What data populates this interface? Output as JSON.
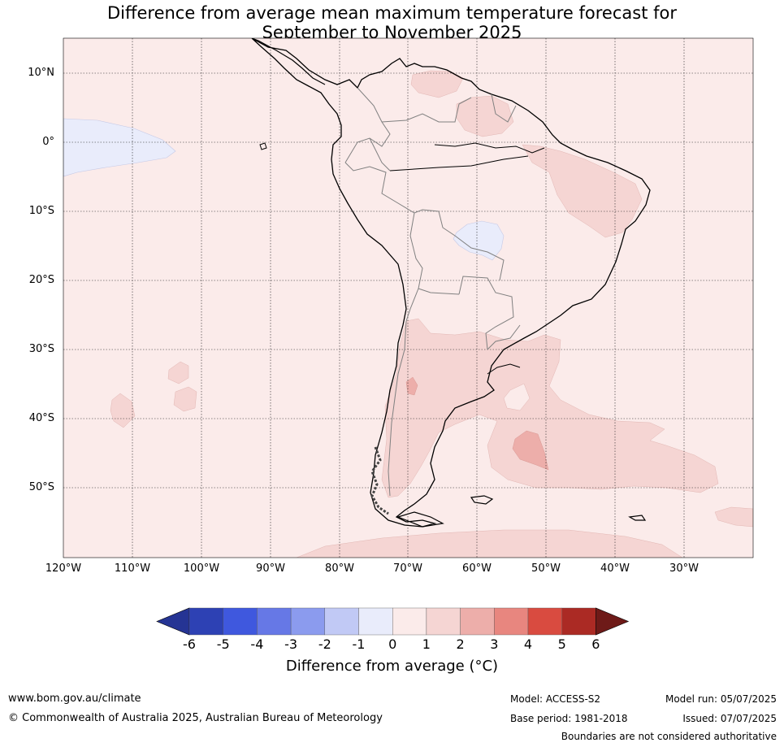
{
  "header": {
    "title_line1": "Difference from average mean maximum temperature forecast for",
    "title_line2": "September to November 2025"
  },
  "map": {
    "lat_labels": [
      "10°N",
      "0°",
      "10°S",
      "20°S",
      "30°S",
      "40°S",
      "50°S"
    ],
    "lon_labels": [
      "120°W",
      "110°W",
      "100°W",
      "90°W",
      "80°W",
      "70°W",
      "60°W",
      "50°W",
      "40°W",
      "30°W"
    ],
    "lon_range": [
      -120,
      -20
    ],
    "lat_range": [
      -60,
      15
    ],
    "colors": {
      "background_anomaly_0_1": "#fbebea",
      "anomaly_1_2": "#f5d5d3",
      "anomaly_2_3": "#edaeaa",
      "anomaly_neg1_0": "#e9ecfb",
      "coastline": "#000000",
      "borders": "#808080"
    }
  },
  "colorbar": {
    "ticks": [
      "-6",
      "-5",
      "-4",
      "-3",
      "-2",
      "-1",
      "0",
      "1",
      "2",
      "3",
      "4",
      "5",
      "6"
    ],
    "colors": [
      "#253494",
      "#2d41b4",
      "#3f58de",
      "#6678e6",
      "#8b9bee",
      "#c1c9f5",
      "#e9ecfb",
      "#fbebea",
      "#f5d5d3",
      "#edaeaa",
      "#e8867f",
      "#d94b40",
      "#ab2a24",
      "#6e1a18"
    ],
    "label": "Difference from average (°C)"
  },
  "footer": {
    "website": "www.bom.gov.au/climate",
    "copyright": "© Commonwealth of Australia 2025, Australian Bureau of Meteorology",
    "model": "Model: ACCESS-S2",
    "base_period": "Base period: 1981-2018",
    "model_run": "Model run: 05/07/2025",
    "issued": "Issued: 07/07/2025",
    "disclaimer": "Boundaries are not considered authoritative"
  }
}
